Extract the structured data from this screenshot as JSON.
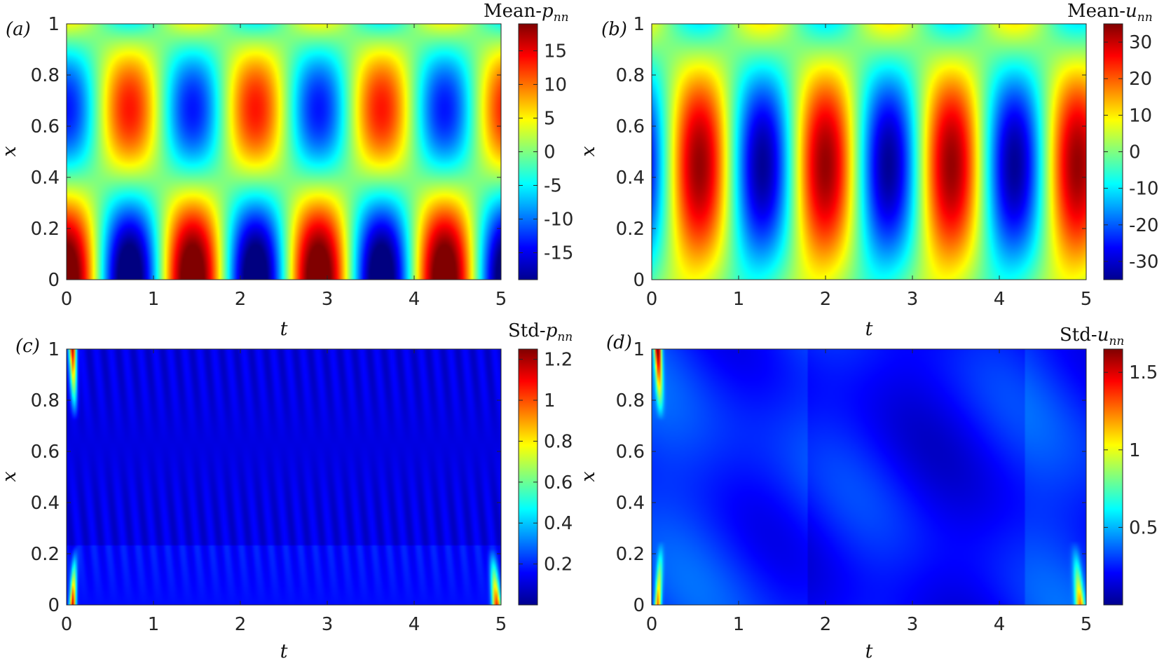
{
  "colormap": "jet",
  "chart_data": [
    {
      "type": "heatmap",
      "panel_label": "(a)",
      "colorbar_title": "Mean-",
      "colorbar_var": "p",
      "colorbar_sub": "nn",
      "xlabel": "t",
      "ylabel": "x",
      "xlim": [
        0,
        5
      ],
      "ylim": [
        0,
        1
      ],
      "xticks": [
        "0",
        "1",
        "2",
        "3",
        "4",
        "5"
      ],
      "yticks": [
        "0",
        "0.2",
        "0.4",
        "0.6",
        "0.8",
        "1"
      ],
      "clim": [
        -19,
        19
      ],
      "cticks": [
        "-15",
        "-10",
        "-5",
        "0",
        "5",
        "10",
        "15"
      ],
      "cticks_values": [
        -15,
        -10,
        -5,
        0,
        5,
        10,
        15
      ],
      "field": "mean_p"
    },
    {
      "type": "heatmap",
      "panel_label": "(b)",
      "colorbar_title": "Mean-",
      "colorbar_var": "u",
      "colorbar_sub": "nn",
      "xlabel": "t",
      "ylabel": "x",
      "xlim": [
        0,
        5
      ],
      "ylim": [
        0,
        1
      ],
      "xticks": [
        "0",
        "1",
        "2",
        "3",
        "4",
        "5"
      ],
      "yticks": [
        "0",
        "0.2",
        "0.4",
        "0.6",
        "0.8",
        "1"
      ],
      "clim": [
        -35,
        35
      ],
      "cticks": [
        "-30",
        "-20",
        "-10",
        "0",
        "10",
        "20",
        "30"
      ],
      "cticks_values": [
        -30,
        -20,
        -10,
        0,
        10,
        20,
        30
      ],
      "field": "mean_u"
    },
    {
      "type": "heatmap",
      "panel_label": "(c)",
      "colorbar_title": "Std-",
      "colorbar_var": "p",
      "colorbar_sub": "nn",
      "xlabel": "t",
      "ylabel": "x",
      "xlim": [
        0,
        5
      ],
      "ylim": [
        0,
        1
      ],
      "xticks": [
        "0",
        "1",
        "2",
        "3",
        "4",
        "5"
      ],
      "yticks": [
        "0",
        "0.2",
        "0.4",
        "0.6",
        "0.8",
        "1"
      ],
      "clim": [
        0,
        1.25
      ],
      "cticks": [
        "0.2",
        "0.4",
        "0.6",
        "0.8",
        "1",
        "1.2"
      ],
      "cticks_values": [
        0.2,
        0.4,
        0.6,
        0.8,
        1.0,
        1.2
      ],
      "field": "std_p"
    },
    {
      "type": "heatmap",
      "panel_label": "(d)",
      "colorbar_title": "Std-",
      "colorbar_var": "u",
      "colorbar_sub": "nn",
      "xlabel": "t",
      "ylabel": "x",
      "xlim": [
        0,
        5
      ],
      "ylim": [
        0,
        1
      ],
      "xticks": [
        "0",
        "1",
        "2",
        "3",
        "4",
        "5"
      ],
      "yticks": [
        "0",
        "0.2",
        "0.4",
        "0.6",
        "0.8",
        "1"
      ],
      "clim": [
        0,
        1.65
      ],
      "cticks": [
        "0.5",
        "1",
        "1.5"
      ],
      "cticks_values": [
        0.5,
        1.0,
        1.5
      ],
      "field": "std_u"
    }
  ]
}
